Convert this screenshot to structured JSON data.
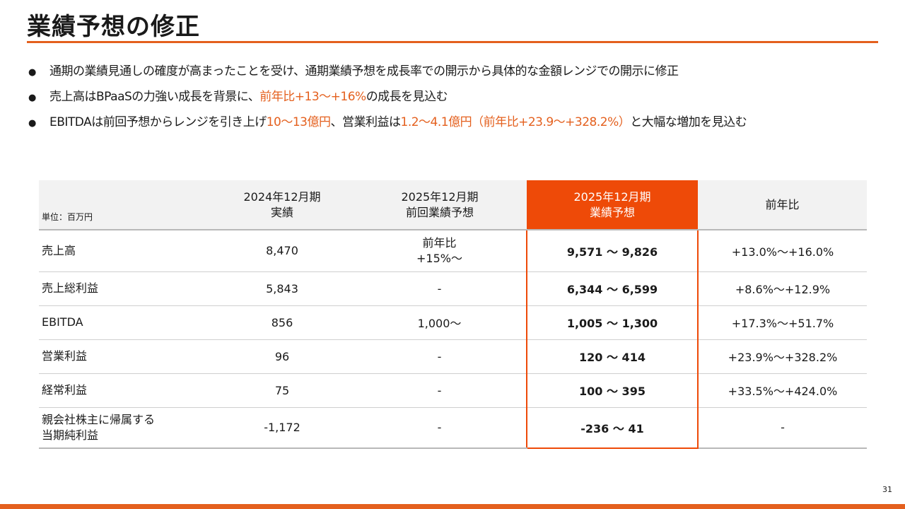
{
  "title": "業績予想の修正",
  "bullets": [
    {
      "parts": [
        {
          "text": "通期の業績見通しの確度が高まったことを受け、通期業績予想を成長率での開示から具体的な金額レンジでの開示に修正",
          "hl": false
        }
      ]
    },
    {
      "parts": [
        {
          "text": "売上高はBPaaSの力強い成長を背景に、",
          "hl": false
        },
        {
          "text": "前年比+13〜+16%",
          "hl": true
        },
        {
          "text": "の成長を見込む",
          "hl": false
        }
      ]
    },
    {
      "parts": [
        {
          "text": "EBITDAは前回予想からレンジを引き上げ",
          "hl": false
        },
        {
          "text": "10〜13億円",
          "hl": true
        },
        {
          "text": "、営業利益は",
          "hl": false
        },
        {
          "text": "1.2〜4.1億円（前年比+23.9〜+328.2%）",
          "hl": true
        },
        {
          "text": "と大幅な増加を見込む",
          "hl": false
        }
      ]
    }
  ],
  "bullet_marker": "●",
  "table": {
    "unit_label": "単位：百万円",
    "headers": [
      {
        "line1": "2024年12月期",
        "line2": "実績"
      },
      {
        "line1": "2025年12月期",
        "line2": "前回業績予想"
      },
      {
        "line1": "2025年12月期",
        "line2": "業績予想"
      },
      {
        "line1": "前年比",
        "line2": ""
      }
    ],
    "rows": [
      {
        "label1": "売上高",
        "label2": "",
        "actual": "8,470",
        "prev1": "前年比",
        "prev2": "+15%〜",
        "forecast": "9,571 〜 9,826",
        "yoy": "+13.0%〜+16.0%"
      },
      {
        "label1": "売上総利益",
        "label2": "",
        "actual": "5,843",
        "prev1": "-",
        "prev2": "",
        "forecast": "6,344 〜 6,599",
        "yoy": "+8.6%〜+12.9%"
      },
      {
        "label1": "EBITDA",
        "label2": "",
        "actual": "856",
        "prev1": "1,000〜",
        "prev2": "",
        "forecast": "1,005 〜 1,300",
        "yoy": "+17.3%〜+51.7%"
      },
      {
        "label1": "営業利益",
        "label2": "",
        "actual": "96",
        "prev1": "-",
        "prev2": "",
        "forecast": "120 〜 414",
        "yoy": "+23.9%〜+328.2%"
      },
      {
        "label1": "経常利益",
        "label2": "",
        "actual": "75",
        "prev1": "-",
        "prev2": "",
        "forecast": "100 〜 395",
        "yoy": "+33.5%〜+424.0%"
      },
      {
        "label1": "親会社株主に帰属する",
        "label2": "当期純利益",
        "actual": "-1,172",
        "prev1": "-",
        "prev2": "",
        "forecast": "-236 〜 41",
        "yoy": "-"
      }
    ]
  },
  "page_number": "31",
  "colors": {
    "accent": "#e4601e",
    "highlight": "#ee4a08"
  }
}
